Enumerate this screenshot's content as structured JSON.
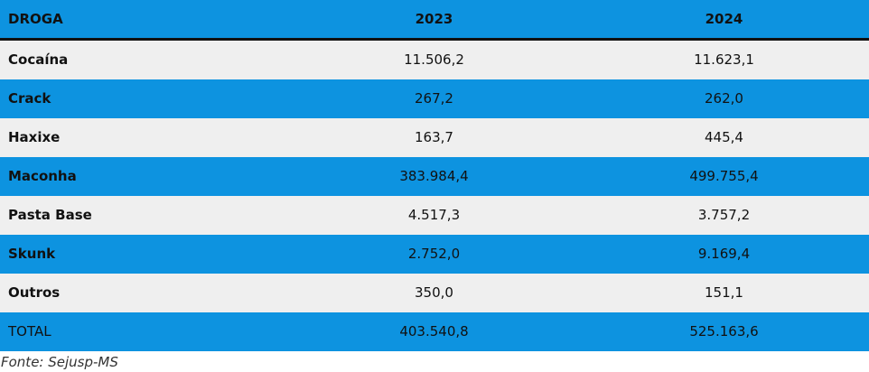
{
  "colors": {
    "header_bg": "#0d93e0",
    "stripe_blue": "#0d93e0",
    "stripe_light": "#efefef",
    "divider": "#111111"
  },
  "table": {
    "headers": [
      "DROGA",
      "2023",
      "2024"
    ],
    "rows": [
      {
        "name": "Cocaína",
        "y2023": "11.506,2",
        "y2024": "11.623,1"
      },
      {
        "name": "Crack",
        "y2023": "267,2",
        "y2024": "262,0"
      },
      {
        "name": "Haxixe",
        "y2023": "163,7",
        "y2024": "445,4"
      },
      {
        "name": "Maconha",
        "y2023": "383.984,4",
        "y2024": "499.755,4"
      },
      {
        "name": "Pasta Base",
        "y2023": "4.517,3",
        "y2024": "3.757,2"
      },
      {
        "name": "Skunk",
        "y2023": "2.752,0",
        "y2024": "9.169,4"
      },
      {
        "name": "Outros",
        "y2023": "350,0",
        "y2024": "151,1"
      }
    ],
    "total": {
      "name": "TOTAL",
      "y2023": "403.540,8",
      "y2024": "525.163,6"
    }
  },
  "source": "Fonte: Sejusp-MS"
}
